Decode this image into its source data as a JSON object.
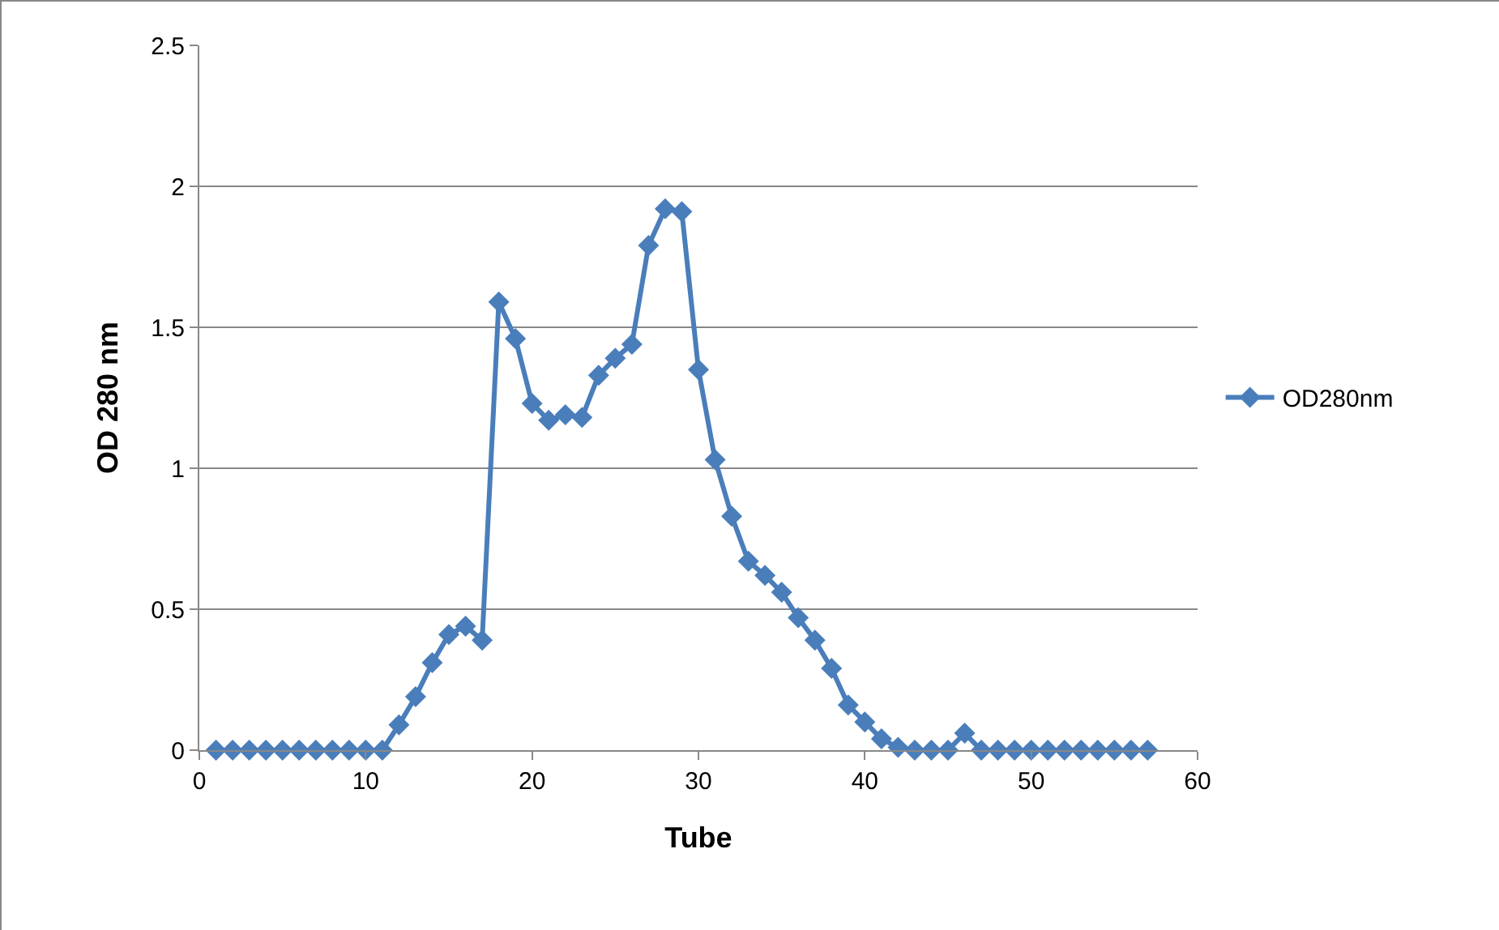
{
  "chart_data": {
    "type": "line",
    "xlabel": "Tube",
    "ylabel": "OD 280 nm",
    "x": [
      1,
      2,
      3,
      4,
      5,
      6,
      7,
      8,
      9,
      10,
      11,
      12,
      13,
      14,
      15,
      16,
      17,
      18,
      19,
      20,
      21,
      22,
      23,
      24,
      25,
      26,
      27,
      28,
      29,
      30,
      31,
      32,
      33,
      34,
      35,
      36,
      37,
      38,
      39,
      40,
      41,
      42,
      43,
      44,
      45,
      46,
      47,
      48,
      49,
      50,
      51,
      52,
      53,
      54,
      55,
      56,
      57
    ],
    "series": [
      {
        "name": "OD280nm",
        "color": "#4a7ebb",
        "values": [
          0,
          0,
          0,
          0,
          0,
          0,
          0,
          0,
          0,
          0,
          0,
          0.09,
          0.19,
          0.31,
          0.41,
          0.44,
          0.39,
          1.59,
          1.46,
          1.23,
          1.17,
          1.19,
          1.18,
          1.33,
          1.39,
          1.44,
          1.79,
          1.92,
          1.91,
          1.35,
          1.03,
          0.83,
          0.67,
          0.62,
          0.56,
          0.47,
          0.39,
          0.29,
          0.16,
          0.1,
          0.04,
          0.01,
          0,
          0,
          0,
          0.06,
          0,
          0,
          0,
          0,
          0,
          0,
          0,
          0,
          0,
          0,
          0
        ]
      }
    ],
    "xlim": [
      0,
      60
    ],
    "xticks": [
      0,
      10,
      20,
      30,
      40,
      50,
      60
    ],
    "ylim": [
      0,
      2.5
    ],
    "yticks": [
      0,
      0.5,
      1,
      1.5,
      2,
      2.5
    ],
    "grid": "y",
    "legend": "right",
    "marker": "diamond",
    "line_style": "solid"
  }
}
